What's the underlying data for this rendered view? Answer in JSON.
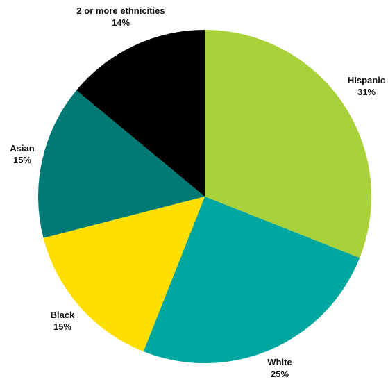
{
  "chart_data": {
    "type": "pie",
    "title": "",
    "start_angle_deg": 0,
    "direction": "clockwise",
    "slices": [
      {
        "label": "HIspanic",
        "value": 31,
        "value_label": "31%",
        "color": "#a9d13a"
      },
      {
        "label": "White",
        "value": 25,
        "value_label": "25%",
        "color": "#00a6a0"
      },
      {
        "label": "Black",
        "value": 15,
        "value_label": "15%",
        "color": "#ffde00"
      },
      {
        "label": "Asian",
        "value": 15,
        "value_label": "15%",
        "color": "#007a74"
      },
      {
        "label": "2 or more ethnicities",
        "value": 14,
        "value_label": "14%",
        "color": "#000000"
      }
    ]
  }
}
